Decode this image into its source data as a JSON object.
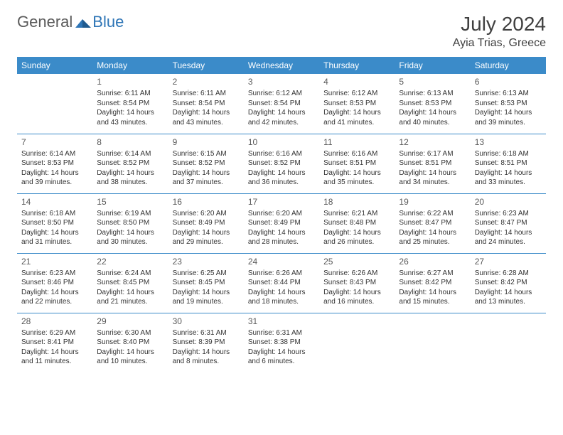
{
  "logo": {
    "general": "General",
    "blue": "Blue"
  },
  "title": "July 2024",
  "location": "Ayia Trias, Greece",
  "colors": {
    "header_bg": "#3b8bc9",
    "header_text": "#ffffff",
    "border": "#3b8bc9",
    "logo_gray": "#5a5a5a",
    "logo_blue": "#2e75b6",
    "title_color": "#404040",
    "cell_text": "#333333"
  },
  "weekdays": [
    "Sunday",
    "Monday",
    "Tuesday",
    "Wednesday",
    "Thursday",
    "Friday",
    "Saturday"
  ],
  "start_offset": 1,
  "days": [
    {
      "n": 1,
      "sr": "6:11 AM",
      "ss": "8:54 PM",
      "dl": "14 hours and 43 minutes."
    },
    {
      "n": 2,
      "sr": "6:11 AM",
      "ss": "8:54 PM",
      "dl": "14 hours and 43 minutes."
    },
    {
      "n": 3,
      "sr": "6:12 AM",
      "ss": "8:54 PM",
      "dl": "14 hours and 42 minutes."
    },
    {
      "n": 4,
      "sr": "6:12 AM",
      "ss": "8:53 PM",
      "dl": "14 hours and 41 minutes."
    },
    {
      "n": 5,
      "sr": "6:13 AM",
      "ss": "8:53 PM",
      "dl": "14 hours and 40 minutes."
    },
    {
      "n": 6,
      "sr": "6:13 AM",
      "ss": "8:53 PM",
      "dl": "14 hours and 39 minutes."
    },
    {
      "n": 7,
      "sr": "6:14 AM",
      "ss": "8:53 PM",
      "dl": "14 hours and 39 minutes."
    },
    {
      "n": 8,
      "sr": "6:14 AM",
      "ss": "8:52 PM",
      "dl": "14 hours and 38 minutes."
    },
    {
      "n": 9,
      "sr": "6:15 AM",
      "ss": "8:52 PM",
      "dl": "14 hours and 37 minutes."
    },
    {
      "n": 10,
      "sr": "6:16 AM",
      "ss": "8:52 PM",
      "dl": "14 hours and 36 minutes."
    },
    {
      "n": 11,
      "sr": "6:16 AM",
      "ss": "8:51 PM",
      "dl": "14 hours and 35 minutes."
    },
    {
      "n": 12,
      "sr": "6:17 AM",
      "ss": "8:51 PM",
      "dl": "14 hours and 34 minutes."
    },
    {
      "n": 13,
      "sr": "6:18 AM",
      "ss": "8:51 PM",
      "dl": "14 hours and 33 minutes."
    },
    {
      "n": 14,
      "sr": "6:18 AM",
      "ss": "8:50 PM",
      "dl": "14 hours and 31 minutes."
    },
    {
      "n": 15,
      "sr": "6:19 AM",
      "ss": "8:50 PM",
      "dl": "14 hours and 30 minutes."
    },
    {
      "n": 16,
      "sr": "6:20 AM",
      "ss": "8:49 PM",
      "dl": "14 hours and 29 minutes."
    },
    {
      "n": 17,
      "sr": "6:20 AM",
      "ss": "8:49 PM",
      "dl": "14 hours and 28 minutes."
    },
    {
      "n": 18,
      "sr": "6:21 AM",
      "ss": "8:48 PM",
      "dl": "14 hours and 26 minutes."
    },
    {
      "n": 19,
      "sr": "6:22 AM",
      "ss": "8:47 PM",
      "dl": "14 hours and 25 minutes."
    },
    {
      "n": 20,
      "sr": "6:23 AM",
      "ss": "8:47 PM",
      "dl": "14 hours and 24 minutes."
    },
    {
      "n": 21,
      "sr": "6:23 AM",
      "ss": "8:46 PM",
      "dl": "14 hours and 22 minutes."
    },
    {
      "n": 22,
      "sr": "6:24 AM",
      "ss": "8:45 PM",
      "dl": "14 hours and 21 minutes."
    },
    {
      "n": 23,
      "sr": "6:25 AM",
      "ss": "8:45 PM",
      "dl": "14 hours and 19 minutes."
    },
    {
      "n": 24,
      "sr": "6:26 AM",
      "ss": "8:44 PM",
      "dl": "14 hours and 18 minutes."
    },
    {
      "n": 25,
      "sr": "6:26 AM",
      "ss": "8:43 PM",
      "dl": "14 hours and 16 minutes."
    },
    {
      "n": 26,
      "sr": "6:27 AM",
      "ss": "8:42 PM",
      "dl": "14 hours and 15 minutes."
    },
    {
      "n": 27,
      "sr": "6:28 AM",
      "ss": "8:42 PM",
      "dl": "14 hours and 13 minutes."
    },
    {
      "n": 28,
      "sr": "6:29 AM",
      "ss": "8:41 PM",
      "dl": "14 hours and 11 minutes."
    },
    {
      "n": 29,
      "sr": "6:30 AM",
      "ss": "8:40 PM",
      "dl": "14 hours and 10 minutes."
    },
    {
      "n": 30,
      "sr": "6:31 AM",
      "ss": "8:39 PM",
      "dl": "14 hours and 8 minutes."
    },
    {
      "n": 31,
      "sr": "6:31 AM",
      "ss": "8:38 PM",
      "dl": "14 hours and 6 minutes."
    }
  ],
  "labels": {
    "sunrise": "Sunrise:",
    "sunset": "Sunset:",
    "daylight": "Daylight:"
  }
}
